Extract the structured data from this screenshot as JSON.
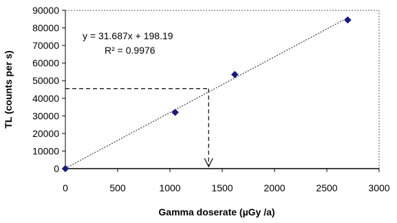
{
  "chart_data": {
    "type": "scatter",
    "xlabel": "Gamma doserate (µGy /a)",
    "ylabel": "TL (counts per s)",
    "xlim": [
      0,
      3000
    ],
    "ylim": [
      0,
      90000
    ],
    "xticks": [
      0,
      500,
      1000,
      1500,
      2000,
      2500,
      3000
    ],
    "yticks": [
      0,
      10000,
      20000,
      30000,
      40000,
      50000,
      60000,
      70000,
      80000,
      90000
    ],
    "grid": false,
    "series": [
      {
        "points": [
          {
            "x": 0,
            "y": 0
          },
          {
            "x": 1050,
            "y": 32000
          },
          {
            "x": 1620,
            "y": 53500
          },
          {
            "x": 2700,
            "y": 84500
          }
        ],
        "marker": "diamond",
        "color": "#1a1a7a"
      }
    ],
    "trendline": {
      "equation": "y = 31.687x + 198.19",
      "r_squared": "R² = 0.9976",
      "slope": 31.687,
      "intercept": 198.19,
      "x_range": [
        0,
        2700
      ],
      "style": "dotted"
    },
    "reference_lines": {
      "tl_level": 45500,
      "doserate": 1370,
      "style": "dashed",
      "arrow": "down"
    }
  }
}
